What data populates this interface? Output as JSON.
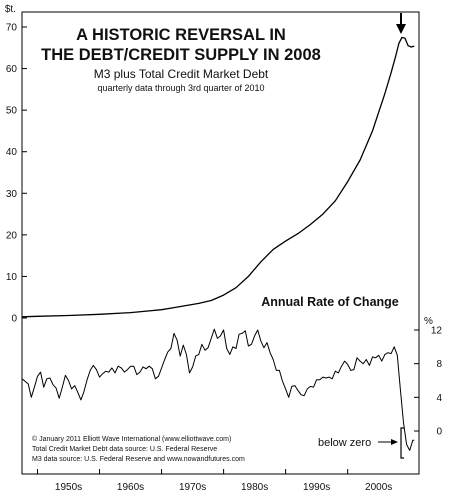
{
  "chart_data": [
    {
      "type": "line",
      "title": "A HISTORIC REVERSAL IN",
      "title2": "THE DEBT/CREDIT SUPPLY IN 2008",
      "subtitle": "M3 plus Total Credit Market Debt",
      "note": "quarterly data through 3rd quarter of 2010",
      "ylabel": "$t.",
      "ylim": [
        0,
        70
      ],
      "yticks": [
        0,
        10,
        20,
        30,
        40,
        50,
        60,
        70
      ],
      "xlim": [
        1947.5,
        2011.5
      ],
      "grid": false,
      "series": [
        {
          "x": [
            1947.5,
            1950,
            1955,
            1960,
            1965,
            1968,
            1970,
            1972,
            1974,
            1976,
            1978,
            1980,
            1982,
            1984,
            1986,
            1988,
            1990,
            1992,
            1994,
            1996,
            1998,
            2000,
            2002,
            2004,
            2006,
            2007,
            2007.75,
            2008.25,
            2008.75,
            2009.25,
            2009.75,
            2010.25,
            2010.75
          ],
          "y": [
            0.3,
            0.4,
            0.6,
            0.9,
            1.3,
            1.7,
            2.0,
            2.5,
            3.0,
            3.5,
            4.2,
            5.5,
            7.3,
            10.0,
            13.5,
            16.5,
            18.5,
            20.3,
            22.5,
            25.0,
            28.2,
            32.8,
            38.0,
            45.0,
            54.0,
            59.0,
            63.0,
            66.0,
            67.5,
            67.3,
            65.5,
            65.2,
            65.4
          ]
        }
      ]
    },
    {
      "type": "line",
      "title": "Annual Rate of Change",
      "ylabel": "%",
      "ylim": [
        -2.5,
        12.5
      ],
      "yticks": [
        0,
        4,
        8,
        12
      ],
      "ytick_labels": [
        "0",
        "4",
        "8",
        "12"
      ],
      "xlim": [
        1947.5,
        2011.5
      ],
      "xticks": [
        1950,
        1960,
        1970,
        1980,
        1990,
        2000
      ],
      "xtick_labels": [
        "1950s",
        "1960s",
        "1970s",
        "1980s",
        "1990s",
        "2000s"
      ],
      "grid": false,
      "series": [
        {
          "x": [
            1947.5,
            1948.5,
            1949.0,
            1949.5,
            1950.0,
            1950.5,
            1951.0,
            1951.5,
            1952.0,
            1952.5,
            1953.0,
            1953.5,
            1954.0,
            1954.5,
            1955.0,
            1955.5,
            1956.0,
            1956.5,
            1957.0,
            1957.5,
            1958.0,
            1958.5,
            1959.0,
            1959.5,
            1960.0,
            1960.5,
            1961.0,
            1961.5,
            1962.0,
            1962.5,
            1963.0,
            1963.5,
            1964.0,
            1964.5,
            1965.0,
            1965.5,
            1966.0,
            1966.5,
            1967.0,
            1967.5,
            1968.0,
            1968.5,
            1969.0,
            1969.5,
            1970.0,
            1970.5,
            1971.0,
            1971.5,
            1972.0,
            1972.5,
            1973.0,
            1973.5,
            1974.0,
            1974.5,
            1975.0,
            1975.5,
            1976.0,
            1976.5,
            1977.0,
            1977.5,
            1978.0,
            1978.5,
            1979.0,
            1979.5,
            1980.0,
            1980.5,
            1981.0,
            1981.5,
            1982.0,
            1982.5,
            1983.0,
            1983.5,
            1984.0,
            1984.5,
            1985.0,
            1985.5,
            1986.0,
            1986.5,
            1987.0,
            1987.5,
            1988.0,
            1988.5,
            1989.0,
            1989.5,
            1990.0,
            1990.5,
            1991.0,
            1991.5,
            1992.0,
            1992.5,
            1993.0,
            1993.5,
            1994.0,
            1994.5,
            1995.0,
            1995.5,
            1996.0,
            1996.5,
            1997.0,
            1997.5,
            1998.0,
            1998.5,
            1999.0,
            1999.5,
            2000.0,
            2000.5,
            2001.0,
            2001.5,
            2002.0,
            2002.5,
            2003.0,
            2003.5,
            2004.0,
            2004.5,
            2005.0,
            2005.5,
            2006.0,
            2006.5,
            2007.0,
            2007.5,
            2008.0,
            2008.5,
            2009.0,
            2009.5,
            2010.0,
            2010.5,
            2010.75
          ],
          "y": [
            6.2,
            5.6,
            4.0,
            5.2,
            6.5,
            7.0,
            5.2,
            6.2,
            6.3,
            5.5,
            5.1,
            3.9,
            5.2,
            6.6,
            6.0,
            5.0,
            5.4,
            4.6,
            3.7,
            4.7,
            6.1,
            7.2,
            7.8,
            7.3,
            6.4,
            6.8,
            7.1,
            7.0,
            7.5,
            6.9,
            7.7,
            7.5,
            7.0,
            7.3,
            7.7,
            7.7,
            6.7,
            7.0,
            7.6,
            7.4,
            7.7,
            7.4,
            6.2,
            6.5,
            7.5,
            8.5,
            9.4,
            9.8,
            11.6,
            10.8,
            8.9,
            10.2,
            9.1,
            6.9,
            7.6,
            8.9,
            9.1,
            10.3,
            9.6,
            9.9,
            11.0,
            12.1,
            11.0,
            11.3,
            12.0,
            9.8,
            9.1,
            10.0,
            9.8,
            11.5,
            11.6,
            11.9,
            10.1,
            10.3,
            11.3,
            12.0,
            10.7,
            9.9,
            10.5,
            9.3,
            8.5,
            7.2,
            7.2,
            5.9,
            5.0,
            4.0,
            5.3,
            5.4,
            4.8,
            4.3,
            4.2,
            5.0,
            5.3,
            5.2,
            6.1,
            6.1,
            6.4,
            6.3,
            6.4,
            6.2,
            7.1,
            6.9,
            7.7,
            8.3,
            7.9,
            7.2,
            7.3,
            8.7,
            8.3,
            8.0,
            8.5,
            7.8,
            8.8,
            8.7,
            9.0,
            8.3,
            9.1,
            9.3,
            9.2,
            10.0,
            9.0,
            4.9,
            1.0,
            -1.6,
            -2.3,
            -1.1,
            -1.1
          ]
        }
      ],
      "annotations": [
        "below zero"
      ]
    }
  ],
  "credits": [
    "© January 2011 Elliott Wave International (www.elliottwave.com)",
    "Total Credit Market Debt data source: U.S. Federal Reserve",
    "M3 data source: U.S. Federal Reserve and www.nowandfutures.com"
  ]
}
